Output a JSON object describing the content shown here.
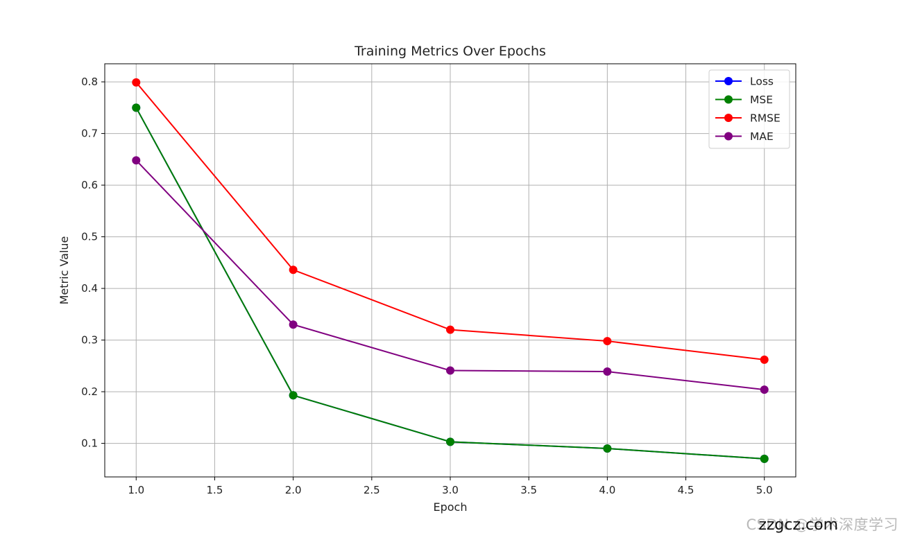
{
  "chart_data": {
    "type": "line",
    "title": "Training Metrics Over Epochs",
    "xlabel": "Epoch",
    "ylabel": "Metric Value",
    "x": [
      1,
      2,
      3,
      4,
      5
    ],
    "xlim": [
      0.8,
      5.2
    ],
    "ylim": [
      0.035,
      0.835
    ],
    "xticks": [
      "1.0",
      "1.5",
      "2.0",
      "2.5",
      "3.0",
      "3.5",
      "4.0",
      "4.5",
      "5.0"
    ],
    "yticks": [
      "0.1",
      "0.2",
      "0.3",
      "0.4",
      "0.5",
      "0.6",
      "0.7",
      "0.8"
    ],
    "grid": true,
    "legend_position": "top-right",
    "series": [
      {
        "name": "Loss",
        "color": "#0000ff",
        "values": [
          0.75,
          0.193,
          0.103,
          0.09,
          0.07
        ]
      },
      {
        "name": "MSE",
        "color": "#008000",
        "values": [
          0.75,
          0.193,
          0.103,
          0.09,
          0.07
        ]
      },
      {
        "name": "RMSE",
        "color": "#ff0000",
        "values": [
          0.799,
          0.436,
          0.32,
          0.298,
          0.262
        ]
      },
      {
        "name": "MAE",
        "color": "#800080",
        "values": [
          0.648,
          0.33,
          0.241,
          0.239,
          0.204
        ]
      }
    ]
  },
  "watermark": {
    "text": "CSDN @学术深度学习",
    "overlay": "zzgcz.com"
  }
}
